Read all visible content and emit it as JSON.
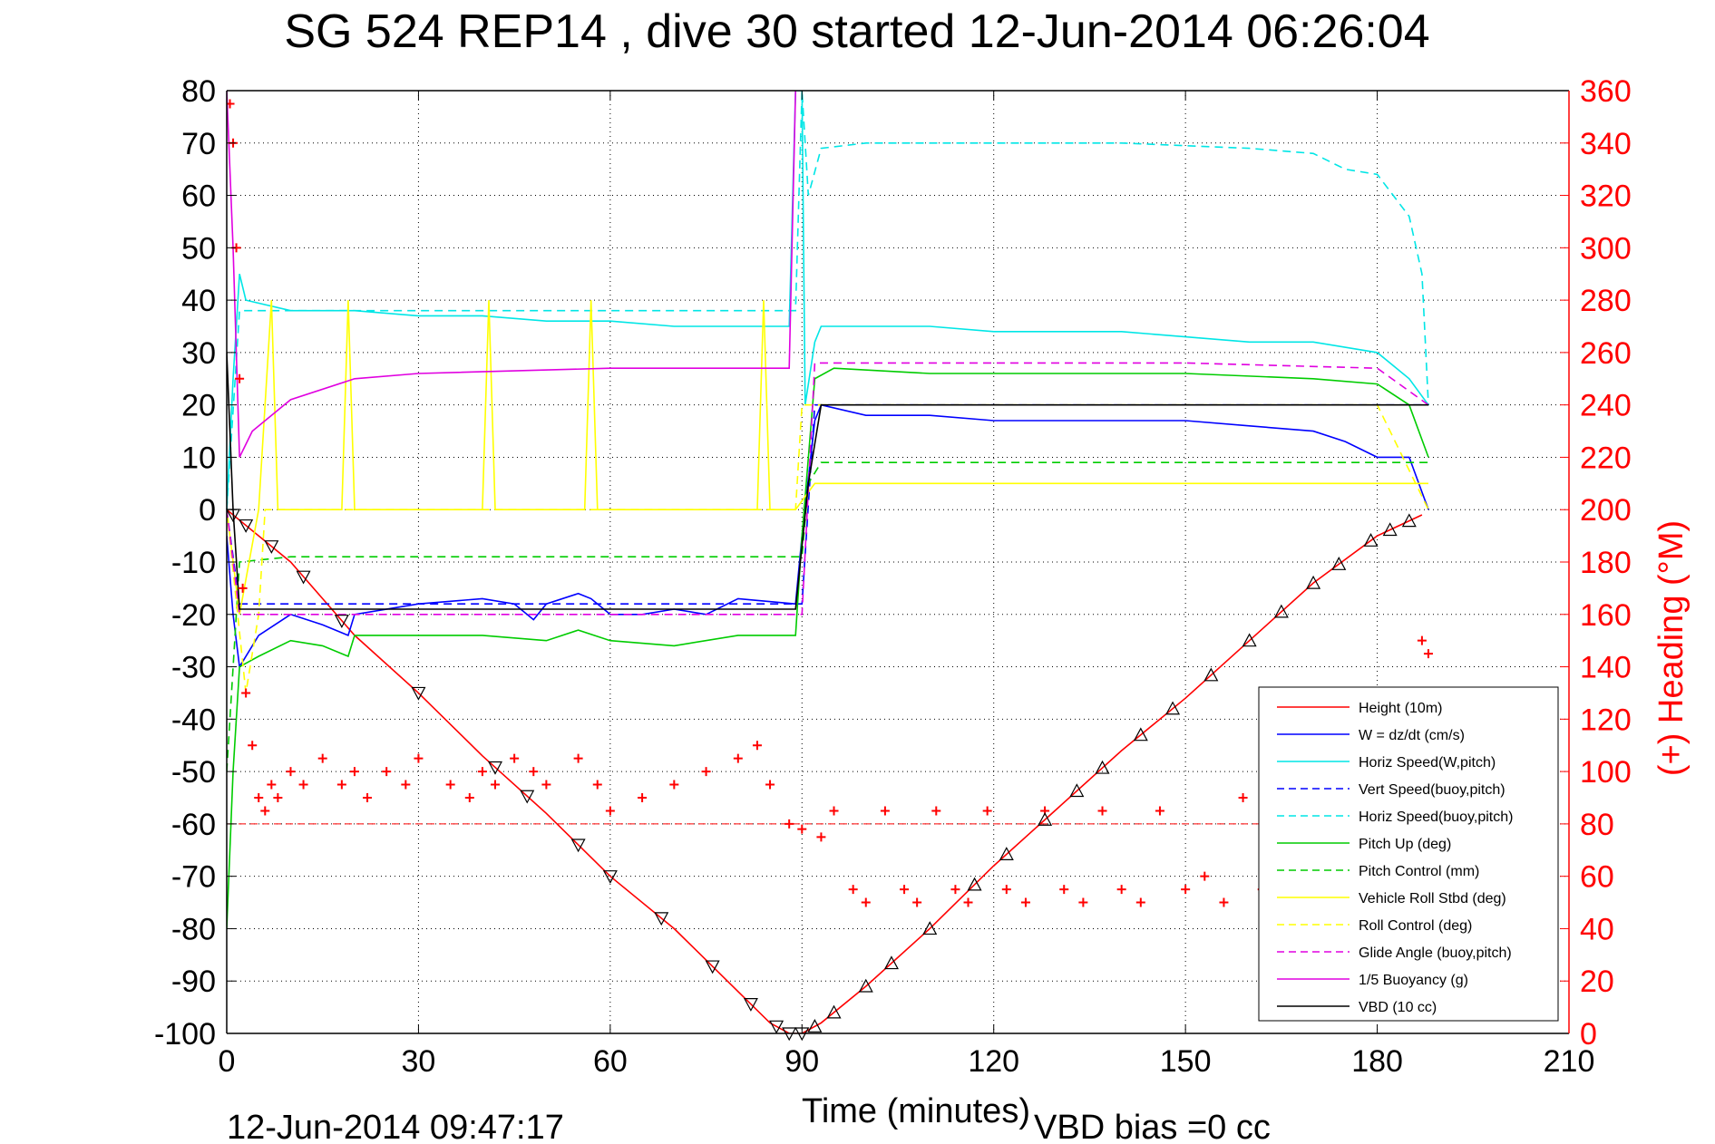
{
  "chart_data": {
    "type": "line",
    "title": "SG 524   REP14  , dive 30 started 12-Jun-2014 06:26:04",
    "xlabel": "Time (minutes)",
    "ylabel_right": "(+) Heading (°M)",
    "xlim": [
      0,
      210
    ],
    "ylim_left": [
      -100,
      80
    ],
    "ylim_right": [
      0,
      360
    ],
    "x_ticks": [
      "0",
      "30",
      "60",
      "90",
      "120",
      "150",
      "180",
      "210"
    ],
    "y_left_ticks": [
      "80",
      "70",
      "60",
      "50",
      "40",
      "30",
      "20",
      "10",
      "0",
      "-10",
      "-20",
      "-30",
      "-40",
      "-50",
      "-60",
      "-70",
      "-80",
      "-90",
      "-100"
    ],
    "y_right_ticks": [
      "360",
      "340",
      "320",
      "300",
      "280",
      "260",
      "240",
      "220",
      "200",
      "180",
      "160",
      "140",
      "120",
      "100",
      "80",
      "60",
      "40",
      "20",
      "0"
    ],
    "grid": true,
    "legend_position": "lower-right",
    "footer_left": "12-Jun-2014 09:47:17",
    "footer_right": "VBD bias =0 cc",
    "right_axis_color": "#ff0000",
    "heading_reference": 80,
    "series": [
      {
        "name": "Height (10m)",
        "color": "#ff0000",
        "dash": "solid",
        "points": [
          [
            0,
            0
          ],
          [
            5,
            -5
          ],
          [
            10,
            -10
          ],
          [
            20,
            -24
          ],
          [
            30,
            -35
          ],
          [
            40,
            -47
          ],
          [
            50,
            -58
          ],
          [
            60,
            -70
          ],
          [
            70,
            -80
          ],
          [
            80,
            -92
          ],
          [
            85,
            -98
          ],
          [
            88,
            -100
          ],
          [
            90,
            -100
          ],
          [
            93,
            -98
          ],
          [
            100,
            -91
          ],
          [
            110,
            -80
          ],
          [
            120,
            -68
          ],
          [
            130,
            -57
          ],
          [
            140,
            -46
          ],
          [
            150,
            -36
          ],
          [
            160,
            -25
          ],
          [
            170,
            -14
          ],
          [
            180,
            -5
          ],
          [
            187,
            -1
          ]
        ]
      },
      {
        "name": "W = dz/dt (cm/s)",
        "color": "#0000ff",
        "dash": "solid",
        "points": [
          [
            0,
            -5
          ],
          [
            1,
            -20
          ],
          [
            2,
            -30
          ],
          [
            5,
            -24
          ],
          [
            10,
            -20
          ],
          [
            15,
            -22
          ],
          [
            19,
            -24
          ],
          [
            20,
            -20
          ],
          [
            30,
            -18
          ],
          [
            40,
            -17
          ],
          [
            45,
            -18
          ],
          [
            48,
            -21
          ],
          [
            50,
            -18
          ],
          [
            55,
            -16
          ],
          [
            57,
            -17
          ],
          [
            60,
            -20
          ],
          [
            65,
            -20
          ],
          [
            70,
            -19
          ],
          [
            75,
            -20
          ],
          [
            80,
            -17
          ],
          [
            89,
            -18
          ],
          [
            90,
            -5
          ],
          [
            92,
            17
          ],
          [
            93,
            20
          ],
          [
            100,
            18
          ],
          [
            110,
            18
          ],
          [
            120,
            17
          ],
          [
            130,
            17
          ],
          [
            140,
            17
          ],
          [
            150,
            17
          ],
          [
            160,
            16
          ],
          [
            170,
            15
          ],
          [
            175,
            13
          ],
          [
            180,
            10
          ],
          [
            185,
            10
          ],
          [
            188,
            0
          ]
        ]
      },
      {
        "name": "Horiz Speed(W,pitch)",
        "color": "#00e6e6",
        "dash": "solid",
        "points": [
          [
            0,
            0
          ],
          [
            1,
            25
          ],
          [
            2,
            45
          ],
          [
            3,
            40
          ],
          [
            10,
            38
          ],
          [
            20,
            38
          ],
          [
            30,
            37
          ],
          [
            40,
            37
          ],
          [
            50,
            36
          ],
          [
            60,
            36
          ],
          [
            70,
            35
          ],
          [
            80,
            35
          ],
          [
            88,
            35
          ],
          [
            89,
            80
          ],
          [
            90,
            80
          ],
          [
            90.5,
            20
          ],
          [
            92,
            32
          ],
          [
            93,
            35
          ],
          [
            100,
            35
          ],
          [
            110,
            35
          ],
          [
            120,
            34
          ],
          [
            130,
            34
          ],
          [
            140,
            34
          ],
          [
            150,
            33
          ],
          [
            160,
            32
          ],
          [
            170,
            32
          ],
          [
            180,
            30
          ],
          [
            185,
            25
          ],
          [
            188,
            20
          ]
        ]
      },
      {
        "name": "Vert Speed(buoy,pitch)",
        "color": "#0000ff",
        "dash": "dashed",
        "points": [
          [
            0,
            0
          ],
          [
            2,
            -18
          ],
          [
            90,
            -18
          ],
          [
            92,
            20
          ],
          [
            188,
            20
          ]
        ]
      },
      {
        "name": "Horiz Speed(buoy,pitch)",
        "color": "#00e6e6",
        "dash": "dashed",
        "points": [
          [
            0,
            0
          ],
          [
            2,
            38
          ],
          [
            89,
            38
          ],
          [
            90,
            80
          ],
          [
            91,
            60
          ],
          [
            93,
            69
          ],
          [
            100,
            70
          ],
          [
            120,
            70
          ],
          [
            140,
            70
          ],
          [
            160,
            69
          ],
          [
            170,
            68
          ],
          [
            175,
            65
          ],
          [
            180,
            64
          ],
          [
            185,
            56
          ],
          [
            187,
            45
          ],
          [
            188,
            20
          ]
        ]
      },
      {
        "name": "Pitch Up (deg)",
        "color": "#00cc00",
        "dash": "solid",
        "points": [
          [
            0,
            -80
          ],
          [
            1,
            -50
          ],
          [
            2,
            -30
          ],
          [
            5,
            -28
          ],
          [
            10,
            -25
          ],
          [
            15,
            -26
          ],
          [
            19,
            -28
          ],
          [
            20,
            -24
          ],
          [
            40,
            -24
          ],
          [
            50,
            -25
          ],
          [
            55,
            -23
          ],
          [
            60,
            -25
          ],
          [
            70,
            -26
          ],
          [
            80,
            -24
          ],
          [
            89,
            -24
          ],
          [
            90,
            -5
          ],
          [
            92,
            25
          ],
          [
            95,
            27
          ],
          [
            110,
            26
          ],
          [
            130,
            26
          ],
          [
            150,
            26
          ],
          [
            170,
            25
          ],
          [
            180,
            24
          ],
          [
            185,
            20
          ],
          [
            188,
            10
          ]
        ]
      },
      {
        "name": "Pitch Control (mm)",
        "color": "#00cc00",
        "dash": "dashed",
        "points": [
          [
            0,
            -50
          ],
          [
            2,
            -10
          ],
          [
            10,
            -9
          ],
          [
            90,
            -9
          ],
          [
            91,
            5
          ],
          [
            93,
            9
          ],
          [
            188,
            9
          ]
        ]
      },
      {
        "name": "Vehicle Roll Stbd (deg)",
        "color": "#ffff00",
        "dash": "solid",
        "points": [
          [
            0,
            0
          ],
          [
            2,
            -20
          ],
          [
            5,
            0
          ],
          [
            7,
            40
          ],
          [
            8,
            0
          ],
          [
            18,
            0
          ],
          [
            19,
            40
          ],
          [
            20,
            0
          ],
          [
            40,
            0
          ],
          [
            41,
            40
          ],
          [
            42,
            0
          ],
          [
            56,
            0
          ],
          [
            57,
            40
          ],
          [
            58,
            0
          ],
          [
            83,
            0
          ],
          [
            84,
            40
          ],
          [
            85,
            0
          ],
          [
            89,
            0
          ],
          [
            92,
            5
          ],
          [
            95,
            5
          ],
          [
            100,
            5
          ],
          [
            110,
            5
          ],
          [
            120,
            5
          ],
          [
            130,
            5
          ],
          [
            140,
            5
          ],
          [
            150,
            5
          ],
          [
            160,
            5
          ],
          [
            170,
            5
          ],
          [
            180,
            5
          ],
          [
            188,
            5
          ]
        ]
      },
      {
        "name": "Roll Control (deg)",
        "color": "#ffff00",
        "dash": "dashed",
        "points": [
          [
            0,
            0
          ],
          [
            3,
            -35
          ],
          [
            5,
            -20
          ],
          [
            6,
            0
          ],
          [
            89,
            0
          ],
          [
            90,
            20
          ],
          [
            95,
            20
          ],
          [
            100,
            20
          ],
          [
            110,
            20
          ],
          [
            120,
            20
          ],
          [
            130,
            20
          ],
          [
            140,
            20
          ],
          [
            150,
            20
          ],
          [
            160,
            20
          ],
          [
            170,
            20
          ],
          [
            180,
            20
          ],
          [
            188,
            0
          ]
        ]
      },
      {
        "name": "Glide Angle (buoy,pitch)",
        "color": "#e000e0",
        "dash": "dashed",
        "points": [
          [
            0,
            0
          ],
          [
            2,
            -20
          ],
          [
            90,
            -20
          ],
          [
            92,
            28
          ],
          [
            110,
            28
          ],
          [
            150,
            28
          ],
          [
            180,
            27
          ],
          [
            188,
            20
          ]
        ]
      },
      {
        "name": "1/5 Buoyancy (g)",
        "color": "#e000e0",
        "dash": "solid",
        "points": [
          [
            0,
            80
          ],
          [
            1,
            50
          ],
          [
            2,
            10
          ],
          [
            4,
            15
          ],
          [
            10,
            21
          ],
          [
            20,
            25
          ],
          [
            30,
            26
          ],
          [
            60,
            27
          ],
          [
            88,
            27
          ],
          [
            89,
            80
          ]
        ]
      },
      {
        "name": "VBD (10 cc)",
        "color": "#000000",
        "dash": "solid",
        "points": [
          [
            0,
            30
          ],
          [
            1,
            0
          ],
          [
            2,
            -19
          ],
          [
            89,
            -19
          ],
          [
            91,
            5
          ],
          [
            93,
            20
          ],
          [
            188,
            20
          ]
        ]
      }
    ],
    "heading_series": {
      "axis": "right",
      "color": "#ff0000",
      "marker": "+",
      "points": [
        [
          0.5,
          355
        ],
        [
          1,
          340
        ],
        [
          1.5,
          300
        ],
        [
          2,
          250
        ],
        [
          2.5,
          170
        ],
        [
          3,
          130
        ],
        [
          4,
          110
        ],
        [
          5,
          90
        ],
        [
          6,
          85
        ],
        [
          7,
          95
        ],
        [
          8,
          90
        ],
        [
          10,
          100
        ],
        [
          12,
          95
        ],
        [
          15,
          105
        ],
        [
          18,
          95
        ],
        [
          20,
          100
        ],
        [
          22,
          90
        ],
        [
          25,
          100
        ],
        [
          28,
          95
        ],
        [
          30,
          105
        ],
        [
          35,
          95
        ],
        [
          38,
          90
        ],
        [
          40,
          100
        ],
        [
          42,
          95
        ],
        [
          45,
          105
        ],
        [
          48,
          100
        ],
        [
          50,
          95
        ],
        [
          55,
          105
        ],
        [
          58,
          95
        ],
        [
          60,
          85
        ],
        [
          65,
          90
        ],
        [
          70,
          95
        ],
        [
          75,
          100
        ],
        [
          80,
          105
        ],
        [
          83,
          110
        ],
        [
          85,
          95
        ],
        [
          88,
          80
        ],
        [
          90,
          78
        ],
        [
          93,
          75
        ],
        [
          95,
          85
        ],
        [
          98,
          55
        ],
        [
          100,
          50
        ],
        [
          103,
          85
        ],
        [
          106,
          55
        ],
        [
          108,
          50
        ],
        [
          111,
          85
        ],
        [
          114,
          55
        ],
        [
          116,
          50
        ],
        [
          119,
          85
        ],
        [
          122,
          55
        ],
        [
          125,
          50
        ],
        [
          128,
          85
        ],
        [
          131,
          55
        ],
        [
          134,
          50
        ],
        [
          137,
          85
        ],
        [
          140,
          55
        ],
        [
          143,
          50
        ],
        [
          146,
          85
        ],
        [
          150,
          55
        ],
        [
          153,
          60
        ],
        [
          156,
          50
        ],
        [
          159,
          90
        ],
        [
          162,
          55
        ],
        [
          165,
          80
        ],
        [
          170,
          75
        ],
        [
          175,
          70
        ],
        [
          180,
          68
        ],
        [
          185,
          65
        ],
        [
          187,
          150
        ],
        [
          188,
          145
        ]
      ]
    },
    "markers": {
      "along": "Height (10m)",
      "x": [
        1,
        3,
        7,
        12,
        18,
        30,
        42,
        47,
        55,
        60,
        68,
        76,
        82,
        86,
        88,
        90,
        92,
        95,
        100,
        104,
        110,
        117,
        122,
        128,
        133,
        137,
        143,
        148,
        154,
        160,
        165,
        170,
        174,
        179,
        182,
        185
      ]
    }
  }
}
